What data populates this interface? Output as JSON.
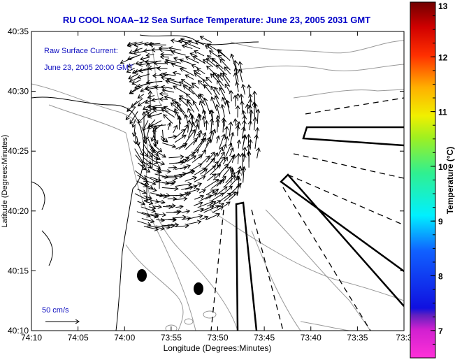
{
  "chart_data": {
    "type": "map-vector-field",
    "title": "RU COOL  NOAA–12  Sea Surface Temperature:  June 23, 2005 2031 GMT",
    "inset_label": "Raw Surface Current:",
    "inset_time": "June 23, 2005 20:00 GMT",
    "scale_label": "50 cm/s",
    "xlabel": "Longitude (Degrees:Minutes)",
    "ylabel": "Latitude (Degrees:Minutes)",
    "x_ticks": [
      "74:10",
      "74:05",
      "74:00",
      "73:55",
      "73:50",
      "73:45",
      "73:40",
      "73:35",
      "73:3"
    ],
    "y_ticks": [
      "40:35",
      "40:30",
      "40:25",
      "40:20",
      "40:15",
      "40:10"
    ],
    "xlim_minutes_west": [
      70,
      30
    ],
    "ylim_minutes_north": [
      10,
      35
    ],
    "colorbar": {
      "label": "Temperature (°C)",
      "range": [
        6.5,
        13
      ],
      "ticks": [
        "13",
        "12",
        "11",
        "10",
        "9",
        "8",
        "7"
      ],
      "tick_values": [
        13,
        12,
        11,
        10,
        9,
        8,
        7
      ]
    },
    "stations": [
      {
        "name": "station-1",
        "lon_min_w": 58.9,
        "lat_min_n": 14.4
      },
      {
        "name": "station-2",
        "lon_min_w": 52.8,
        "lat_min_n": 13.5
      }
    ],
    "eddy": {
      "center_lon_min_w": 55.5,
      "center_lat_min_n": 26.8
    }
  }
}
